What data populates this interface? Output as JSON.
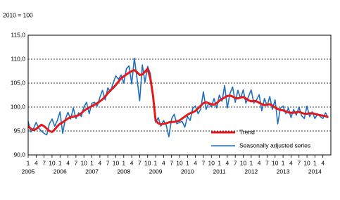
{
  "chart_data": {
    "type": "line",
    "subtitle": "2010 = 100",
    "categories": [
      "1",
      null,
      null,
      "4",
      null,
      null,
      "7",
      null,
      null,
      "10",
      null,
      null,
      "1",
      null,
      null,
      "4",
      null,
      null,
      "7",
      null,
      null,
      "10",
      null,
      null,
      "1",
      null,
      null,
      "4",
      null,
      null,
      "7",
      null,
      null,
      "10",
      null,
      null,
      "1",
      null,
      null,
      "4",
      null,
      null,
      "7",
      null,
      null,
      "10",
      null,
      null,
      "1",
      null,
      null,
      "4",
      null,
      null,
      "7",
      null,
      null,
      "10",
      null,
      null,
      "1",
      null,
      null,
      "4",
      null,
      null,
      "7",
      null,
      null,
      "10",
      null,
      null,
      "1",
      null,
      null,
      "4",
      null,
      null,
      "7",
      null,
      null,
      "10",
      null,
      null,
      "1",
      null,
      null,
      "4",
      null,
      null,
      "7",
      null,
      null,
      "10",
      null,
      null,
      "1",
      null,
      null,
      "4",
      null,
      null,
      "7",
      null,
      null,
      "10",
      null,
      null,
      "1",
      null,
      null,
      "4",
      null,
      null
    ],
    "year_labels": [
      "2005",
      "2006",
      "2007",
      "2008",
      "2009",
      "2010",
      "2011",
      "2012",
      "2013",
      "2014"
    ],
    "ylim": [
      90,
      115
    ],
    "yticks": [
      {
        "value": 90,
        "label": "90,0"
      },
      {
        "value": 95,
        "label": "95,0"
      },
      {
        "value": 100,
        "label": "100,0"
      },
      {
        "value": 105,
        "label": "105,0"
      },
      {
        "value": 110,
        "label": "110,0"
      },
      {
        "value": 115,
        "label": "115,0"
      }
    ],
    "grid": true,
    "legend_position": "lower right",
    "series": [
      {
        "name": "Trend",
        "color": "#e31a1c",
        "width": 3,
        "values": [
          96.0,
          95.5,
          95.2,
          95.4,
          95.9,
          96.3,
          96.0,
          95.5,
          95.0,
          94.8,
          95.3,
          96.0,
          96.5,
          96.8,
          97.2,
          97.6,
          97.9,
          98.0,
          98.1,
          98.3,
          98.7,
          99.2,
          99.6,
          99.9,
          100.2,
          100.5,
          100.8,
          101.2,
          101.6,
          102.2,
          102.9,
          103.5,
          104.0,
          104.6,
          105.3,
          106.0,
          106.4,
          106.8,
          107.2,
          107.5,
          107.7,
          107.3,
          106.7,
          106.8,
          107.4,
          108.0,
          106.0,
          102.5,
          97.2,
          96.6,
          96.4,
          96.5,
          96.6,
          96.8,
          96.9,
          96.9,
          97.0,
          97.2,
          97.6,
          98.0,
          98.4,
          98.7,
          98.9,
          99.2,
          99.7,
          100.3,
          100.8,
          101.0,
          100.8,
          100.6,
          100.5,
          100.8,
          101.3,
          101.7,
          102.0,
          102.3,
          102.4,
          102.2,
          101.9,
          101.8,
          102.0,
          102.1,
          101.8,
          101.4,
          101.2,
          101.3,
          101.2,
          100.9,
          100.6,
          100.4,
          100.5,
          100.6,
          100.3,
          99.9,
          99.6,
          99.4,
          99.3,
          99.1,
          98.9,
          98.8,
          98.8,
          98.9,
          99.0,
          98.8,
          98.6,
          98.6,
          98.7,
          98.7,
          98.6,
          98.4,
          98.3,
          98.2,
          98.1,
          97.9
        ]
      },
      {
        "name": "Seasonally adjusted series",
        "color": "#1f6fbf",
        "width": 1.6,
        "values": [
          97.0,
          94.8,
          95.5,
          96.8,
          95.6,
          95.0,
          94.5,
          94.2,
          96.5,
          97.5,
          96.0,
          97.2,
          99.0,
          94.5,
          97.5,
          98.9,
          97.5,
          99.8,
          97.6,
          98.8,
          98.0,
          100.0,
          101.0,
          98.6,
          100.8,
          101.0,
          100.2,
          102.0,
          103.5,
          101.5,
          104.0,
          103.2,
          105.0,
          106.5,
          105.8,
          106.7,
          105.0,
          108.0,
          108.6,
          104.8,
          110.2,
          106.0,
          101.3,
          108.8,
          105.2,
          108.5,
          107.0,
          102.8,
          96.8,
          97.8,
          96.0,
          97.2,
          96.2,
          93.8,
          97.5,
          98.5,
          96.5,
          96.8,
          97.0,
          95.8,
          98.0,
          97.2,
          99.8,
          100.2,
          98.6,
          99.6,
          103.2,
          99.5,
          100.8,
          100.0,
          101.8,
          99.8,
          102.5,
          101.2,
          104.5,
          99.8,
          102.8,
          104.2,
          101.0,
          103.5,
          101.8,
          103.6,
          100.8,
          102.2,
          103.6,
          100.8,
          101.5,
          102.6,
          99.2,
          101.8,
          100.2,
          102.2,
          99.5,
          101.5,
          96.5,
          99.8,
          100.2,
          98.6,
          99.8,
          97.8,
          99.5,
          98.3,
          100.0,
          98.2,
          97.6,
          100.2,
          98.0,
          99.0,
          97.6,
          98.6,
          98.0,
          97.6,
          98.8,
          97.8
        ]
      }
    ]
  }
}
